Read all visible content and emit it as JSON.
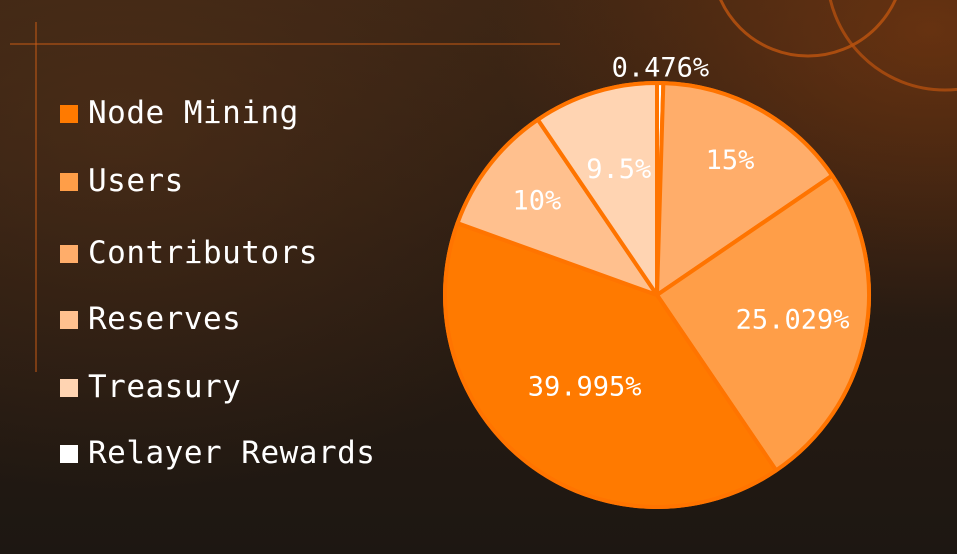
{
  "colors": {
    "accent": "#ff7400",
    "slice_node_mining": "#ff7a00",
    "slice_users": "#ff9e48",
    "slice_contributors": "#ffad6a",
    "slice_reserves": "#ffc08e",
    "slice_treasury": "#ffd4b2",
    "slice_relayer": "#ffffff"
  },
  "chart_data": {
    "type": "pie",
    "title": "",
    "legend_position": "left",
    "categories": [
      "Node Mining",
      "Users",
      "Contributors",
      "Reserves",
      "Treasury",
      "Relayer Rewards"
    ],
    "values": [
      39.995,
      25.029,
      15,
      10,
      9.5,
      0.476
    ],
    "data_labels": [
      "39.995%",
      "25.029%",
      "15%",
      "10%",
      "9.5%",
      "0.476%"
    ],
    "colors": [
      "#ff7a00",
      "#ff9e48",
      "#ffad6a",
      "#ffc08e",
      "#ffd4b2",
      "#ffffff"
    ]
  }
}
